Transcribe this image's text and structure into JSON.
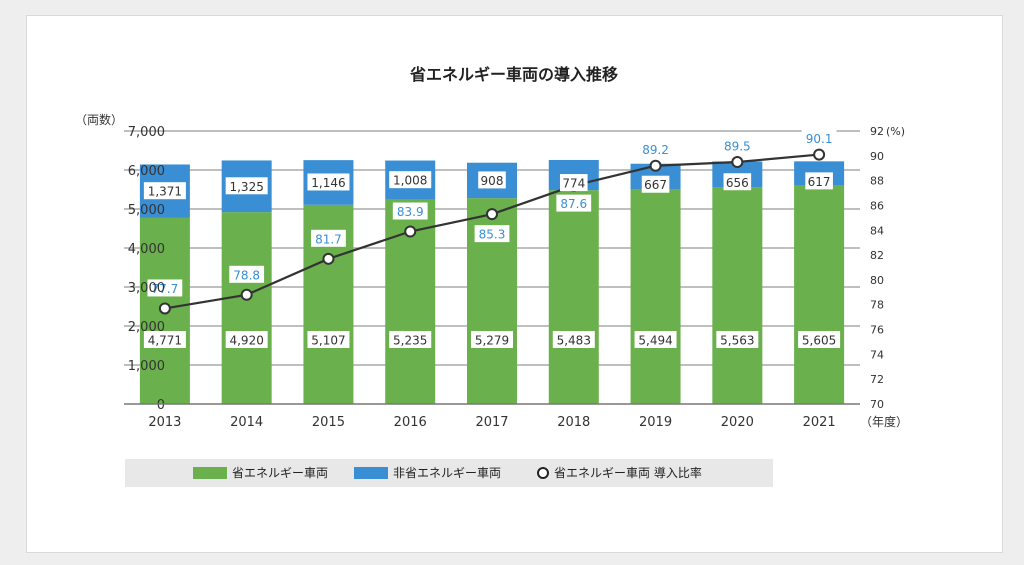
{
  "chart_data": {
    "type": "bar",
    "title": "省エネルギー車両の導入推移",
    "ylabel_left": "（両数）",
    "ylabel_right": "(%)",
    "xlabel": "（年度）",
    "categories": [
      "2013",
      "2014",
      "2015",
      "2016",
      "2017",
      "2018",
      "2019",
      "2020",
      "2021"
    ],
    "series": [
      {
        "name": "省エネルギー車両",
        "type": "bar",
        "axis": "left",
        "color": "#6ab04c",
        "values": [
          4771,
          4920,
          5107,
          5235,
          5279,
          5483,
          5494,
          5563,
          5605
        ],
        "value_labels": [
          "4,771",
          "4,920",
          "5,107",
          "5,235",
          "5,279",
          "5,483",
          "5,494",
          "5,563",
          "5,605"
        ]
      },
      {
        "name": "非省エネルギー車両",
        "type": "bar",
        "axis": "left",
        "color": "#3a8fd4",
        "values": [
          1371,
          1325,
          1146,
          1008,
          908,
          774,
          667,
          656,
          617
        ],
        "value_labels": [
          "1,371",
          "1,325",
          "1,146",
          "1,008",
          "908",
          "774",
          "667",
          "656",
          "617"
        ]
      },
      {
        "name": "省エネルギー車両 導入比率",
        "type": "line",
        "axis": "right",
        "color": "#333333",
        "values": [
          77.7,
          78.8,
          81.7,
          83.9,
          85.3,
          87.6,
          89.2,
          89.5,
          90.1
        ],
        "value_labels": [
          "77.7",
          "78.8",
          "81.7",
          "83.9",
          "85.3",
          "87.6",
          "89.2",
          "89.5",
          "90.1"
        ]
      }
    ],
    "y_left": {
      "lim": [
        0,
        7000
      ],
      "ticks": [
        0,
        1000,
        2000,
        3000,
        4000,
        5000,
        6000,
        7000
      ],
      "tick_labels": [
        "0",
        "1,000",
        "2,000",
        "3,000",
        "4,000",
        "5,000",
        "6,000",
        "7,000"
      ]
    },
    "y_right": {
      "lim": [
        70,
        92
      ],
      "ticks": [
        70,
        72,
        74,
        76,
        78,
        80,
        82,
        84,
        86,
        88,
        90,
        92
      ],
      "tick_labels": [
        "70",
        "72",
        "74",
        "76",
        "78",
        "80",
        "82",
        "84",
        "86",
        "88",
        "90",
        "92"
      ]
    },
    "grid": "horizontal",
    "legend_position": "bottom",
    "colors": {
      "percent_label": "#3a8fd4",
      "grid": "#999999",
      "legend_bg": "#e8e8e8"
    }
  }
}
